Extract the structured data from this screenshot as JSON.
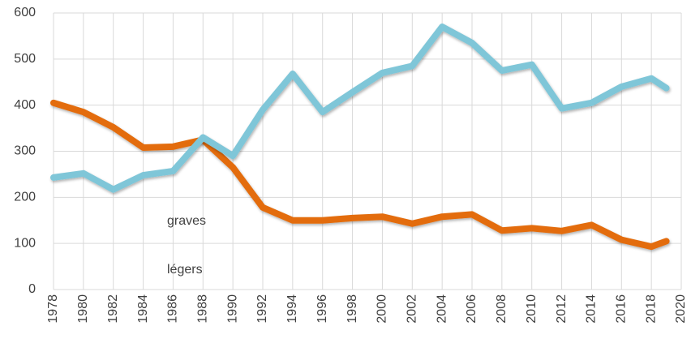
{
  "chart_data": {
    "type": "line",
    "x": [
      1978,
      1980,
      1982,
      1984,
      1986,
      1988,
      1990,
      1992,
      1994,
      1996,
      1998,
      2000,
      2002,
      2004,
      2006,
      2008,
      2010,
      2012,
      2014,
      2016,
      2018,
      2019
    ],
    "series": [
      {
        "name": "graves",
        "color": "#e36c0a",
        "values": [
          405,
          385,
          352,
          308,
          310,
          325,
          265,
          178,
          150,
          150,
          155,
          158,
          143,
          158,
          163,
          128,
          133,
          127,
          140,
          108,
          93,
          105
        ]
      },
      {
        "name": "légers",
        "color": "#7fc6d8",
        "values": [
          243,
          252,
          217,
          248,
          257,
          330,
          290,
          390,
          468,
          385,
          428,
          470,
          485,
          570,
          535,
          475,
          488,
          393,
          405,
          440,
          458,
          437
        ]
      }
    ],
    "xlim": [
      1978,
      2020
    ],
    "xticks": [
      1978,
      1980,
      1982,
      1984,
      1986,
      1988,
      1990,
      1992,
      1994,
      1996,
      1998,
      2000,
      2002,
      2004,
      2006,
      2008,
      2010,
      2012,
      2014,
      2016,
      2018,
      2020
    ],
    "ylim": [
      0,
      600
    ],
    "yticks": [
      0,
      100,
      200,
      300,
      400,
      500,
      600
    ],
    "grid": true,
    "legend": "inside"
  }
}
